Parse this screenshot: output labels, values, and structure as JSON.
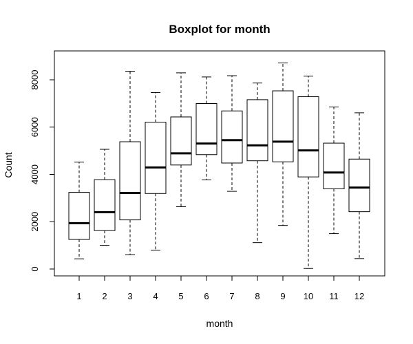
{
  "chart_data": {
    "type": "boxplot",
    "title": "Boxplot for month",
    "xlabel": "month",
    "ylabel": "Count",
    "ylim": [
      0,
      9000
    ],
    "yticks": [
      0,
      2000,
      4000,
      6000,
      8000
    ],
    "categories": [
      "1",
      "2",
      "3",
      "4",
      "5",
      "6",
      "7",
      "8",
      "9",
      "10",
      "11",
      "12"
    ],
    "boxes": [
      {
        "min": 431,
        "q1": 1251,
        "median": 1939,
        "q3": 3240,
        "max": 4521
      },
      {
        "min": 1005,
        "q1": 1625,
        "median": 2402,
        "q3": 3778,
        "max": 5062
      },
      {
        "min": 605,
        "q1": 2077,
        "median": 3216,
        "q3": 5381,
        "max": 8362
      },
      {
        "min": 795,
        "q1": 3192,
        "median": 4294,
        "q3": 6208,
        "max": 7460
      },
      {
        "min": 2633,
        "q1": 4398,
        "median": 4890,
        "q3": 6430,
        "max": 8294
      },
      {
        "min": 3767,
        "q1": 4836,
        "median": 5306,
        "q3": 6996,
        "max": 8120
      },
      {
        "min": 3285,
        "q1": 4481,
        "median": 5446,
        "q3": 6684,
        "max": 8173
      },
      {
        "min": 1115,
        "q1": 4576,
        "median": 5229,
        "q3": 7159,
        "max": 7865
      },
      {
        "min": 1842,
        "q1": 4532,
        "median": 5384,
        "q3": 7533,
        "max": 8714
      },
      {
        "min": 22,
        "q1": 3894,
        "median": 5013,
        "q3": 7285,
        "max": 8156
      },
      {
        "min": 1495,
        "q1": 3390,
        "median": 4081,
        "q3": 5322,
        "max": 6852
      },
      {
        "min": 441,
        "q1": 2424,
        "median": 3444,
        "q3": 4647,
        "max": 6606
      }
    ],
    "grid": false,
    "legend": "none"
  }
}
